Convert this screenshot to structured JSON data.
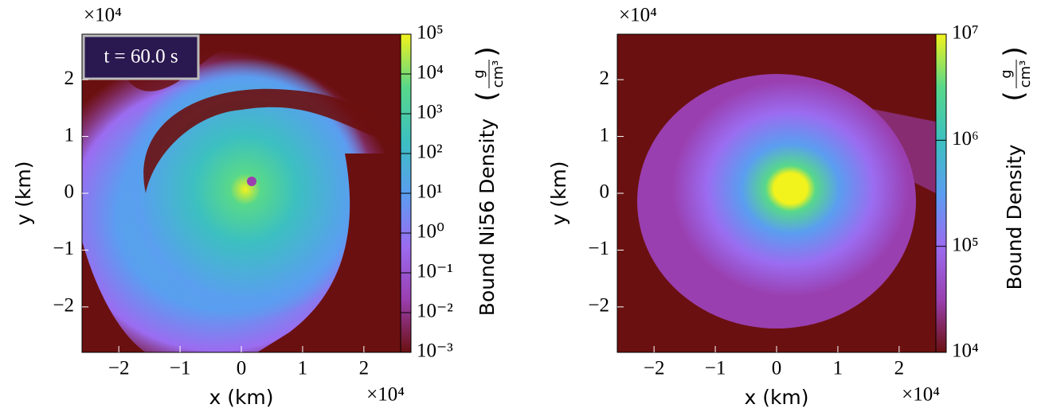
{
  "chart_data": [
    {
      "type": "heatmap",
      "annotation": "t = 60.0 s",
      "xlabel": "x  (km)",
      "ylabel": "y  (km)",
      "x_offset": "×10⁴",
      "y_offset": "×10⁴",
      "xlim": [
        -2.6,
        2.6
      ],
      "ylim": [
        -2.8,
        2.8
      ],
      "xticks": [
        {
          "value": -2,
          "label": "−2"
        },
        {
          "value": -1,
          "label": "−1"
        },
        0,
        1,
        2
      ],
      "yticks": [
        {
          "value": -2,
          "label": "−2"
        },
        {
          "value": -1,
          "label": "−1"
        },
        0,
        1,
        2
      ],
      "colorbar": {
        "label": "Bound Ni56 Density",
        "unit_numerator": "g",
        "unit_denominator": "cm³",
        "log_scale": true,
        "clim": [
          0.001,
          100000
        ],
        "ticks": [
          {
            "value": 0.001,
            "label": "10⁻³"
          },
          {
            "value": 0.01,
            "label": "10⁻²"
          },
          {
            "value": 0.1,
            "label": "10⁻¹"
          },
          {
            "value": 1,
            "label": "10⁰"
          },
          {
            "value": 10,
            "label": "10¹"
          },
          {
            "value": 100,
            "label": "10²"
          },
          {
            "value": 1000,
            "label": "10³"
          },
          {
            "value": 10000,
            "label": "10⁴"
          },
          {
            "value": 100000,
            "label": "10⁵"
          }
        ],
        "colormap": [
          "#6b1010",
          "#9a3fb0",
          "#9b6cf0",
          "#5a9ef0",
          "#3cc0c0",
          "#58d88a",
          "#f2f21c"
        ]
      }
    },
    {
      "type": "heatmap",
      "xlabel": "x  (km)",
      "ylabel": "y  (km)",
      "x_offset": "×10⁴",
      "y_offset": "×10⁴",
      "xlim": [
        -2.6,
        2.6
      ],
      "ylim": [
        -2.8,
        2.8
      ],
      "xticks": [
        {
          "value": -2,
          "label": "−2"
        },
        {
          "value": -1,
          "label": "−1"
        },
        0,
        1,
        2
      ],
      "yticks": [
        {
          "value": -2,
          "label": "−2"
        },
        {
          "value": -1,
          "label": "−1"
        },
        0,
        1,
        2
      ],
      "colorbar": {
        "label": "Bound Density",
        "unit_numerator": "g",
        "unit_denominator": "cm³",
        "log_scale": true,
        "clim": [
          10000,
          10000000
        ],
        "ticks": [
          {
            "value": 10000,
            "label": "10⁴"
          },
          {
            "value": 100000,
            "label": "10⁵"
          },
          {
            "value": 1000000,
            "label": "10⁶"
          },
          {
            "value": 10000000,
            "label": "10⁷"
          }
        ],
        "colormap": [
          "#6b1010",
          "#9a3fb0",
          "#9b6cf0",
          "#5a9ef0",
          "#3cc0c0",
          "#58d88a",
          "#f2f21c"
        ]
      }
    }
  ]
}
